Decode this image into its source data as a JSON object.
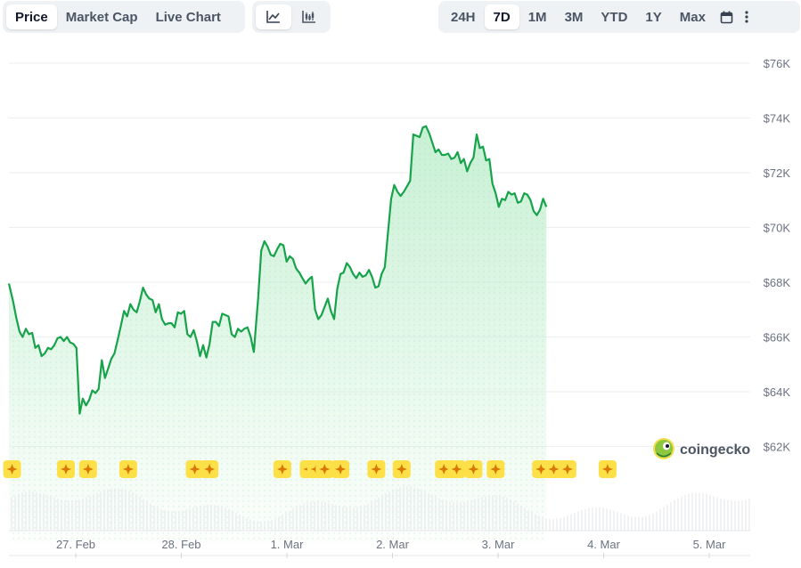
{
  "tabs": {
    "items": [
      {
        "label": "Price",
        "active": true
      },
      {
        "label": "Market Cap",
        "active": false
      },
      {
        "label": "Live Chart",
        "active": false
      }
    ]
  },
  "chart_type_toggle": {
    "items": [
      {
        "icon": "line-chart-icon",
        "active": true
      },
      {
        "icon": "candlestick-chart-icon",
        "active": false
      }
    ]
  },
  "ranges": {
    "items": [
      {
        "label": "24H",
        "active": false
      },
      {
        "label": "7D",
        "active": true
      },
      {
        "label": "1M",
        "active": false
      },
      {
        "label": "3M",
        "active": false
      },
      {
        "label": "YTD",
        "active": false
      },
      {
        "label": "1Y",
        "active": false
      },
      {
        "label": "Max",
        "active": false
      }
    ],
    "calendar_icon": "calendar-icon",
    "more_icon": "more-vertical-icon"
  },
  "watermark": {
    "text": "coingecko",
    "icon": "coingecko-gecko-icon"
  },
  "colors": {
    "line": "#16a34a",
    "area_top": "#c8f0d4",
    "event_badge": "#fde047",
    "event_star": "#d97706",
    "grid": "#eceef1",
    "axis_text": "#6b7280"
  },
  "chart_data": {
    "type": "area",
    "title": "",
    "xlabel": "",
    "ylabel": "",
    "y_ticks": [
      "$76K",
      "$74K",
      "$72K",
      "$70K",
      "$68K",
      "$66K",
      "$64K",
      "$62K"
    ],
    "y_tick_values": [
      76000,
      74000,
      72000,
      70000,
      68000,
      66000,
      64000,
      62000
    ],
    "ylim": [
      62000,
      76000
    ],
    "x_ticks": [
      "27. Feb",
      "28. Feb",
      "1. Mar",
      "2. Mar",
      "3. Mar",
      "4. Mar",
      "5. Mar"
    ],
    "xlim": [
      0,
      6.98
    ],
    "grid": true,
    "series": [
      {
        "values": [
          [
            0.0,
            67950
          ],
          [
            0.04,
            67300
          ],
          [
            0.07,
            66700
          ],
          [
            0.1,
            66200
          ],
          [
            0.13,
            66000
          ],
          [
            0.16,
            66300
          ],
          [
            0.19,
            66100
          ],
          [
            0.22,
            66150
          ],
          [
            0.25,
            65600
          ],
          [
            0.28,
            65700
          ],
          [
            0.31,
            65300
          ],
          [
            0.34,
            65400
          ],
          [
            0.37,
            65600
          ],
          [
            0.4,
            65550
          ],
          [
            0.43,
            65700
          ],
          [
            0.46,
            65950
          ],
          [
            0.49,
            66000
          ],
          [
            0.52,
            65850
          ],
          [
            0.55,
            66000
          ],
          [
            0.58,
            65800
          ],
          [
            0.61,
            65750
          ],
          [
            0.64,
            65600
          ],
          [
            0.67,
            63200
          ],
          [
            0.7,
            63750
          ],
          [
            0.73,
            63500
          ],
          [
            0.76,
            63700
          ],
          [
            0.79,
            64050
          ],
          [
            0.82,
            63950
          ],
          [
            0.85,
            64100
          ],
          [
            0.88,
            65150
          ],
          [
            0.91,
            64500
          ],
          [
            0.94,
            64850
          ],
          [
            0.97,
            65200
          ],
          [
            1.0,
            65400
          ],
          [
            1.03,
            65900
          ],
          [
            1.06,
            66400
          ],
          [
            1.09,
            66950
          ],
          [
            1.12,
            66750
          ],
          [
            1.15,
            67200
          ],
          [
            1.18,
            67000
          ],
          [
            1.21,
            66900
          ],
          [
            1.24,
            67300
          ],
          [
            1.27,
            67800
          ],
          [
            1.3,
            67550
          ],
          [
            1.33,
            67400
          ],
          [
            1.36,
            67350
          ],
          [
            1.39,
            66900
          ],
          [
            1.42,
            67200
          ],
          [
            1.45,
            66650
          ],
          [
            1.48,
            66450
          ],
          [
            1.51,
            66500
          ],
          [
            1.54,
            66500
          ],
          [
            1.57,
            66350
          ],
          [
            1.6,
            66900
          ],
          [
            1.63,
            66850
          ],
          [
            1.66,
            66950
          ],
          [
            1.69,
            66100
          ],
          [
            1.72,
            66000
          ],
          [
            1.75,
            66250
          ],
          [
            1.78,
            65850
          ],
          [
            1.81,
            65300
          ],
          [
            1.84,
            65700
          ],
          [
            1.87,
            65250
          ],
          [
            1.9,
            65750
          ],
          [
            1.93,
            66550
          ],
          [
            1.96,
            66550
          ],
          [
            1.99,
            66400
          ],
          [
            2.02,
            66850
          ],
          [
            2.05,
            66800
          ],
          [
            2.08,
            66750
          ],
          [
            2.11,
            66100
          ],
          [
            2.14,
            66000
          ],
          [
            2.17,
            66300
          ],
          [
            2.2,
            66200
          ],
          [
            2.23,
            66300
          ],
          [
            2.26,
            66350
          ],
          [
            2.29,
            66000
          ],
          [
            2.32,
            65450
          ],
          [
            2.36,
            67400
          ],
          [
            2.39,
            69150
          ],
          [
            2.42,
            69500
          ],
          [
            2.45,
            69300
          ],
          [
            2.48,
            69000
          ],
          [
            2.51,
            68950
          ],
          [
            2.54,
            69200
          ],
          [
            2.57,
            69400
          ],
          [
            2.6,
            69350
          ],
          [
            2.63,
            68750
          ],
          [
            2.66,
            68950
          ],
          [
            2.69,
            68850
          ],
          [
            2.72,
            68500
          ],
          [
            2.75,
            68350
          ],
          [
            2.78,
            68150
          ],
          [
            2.81,
            67950
          ],
          [
            2.84,
            68100
          ],
          [
            2.87,
            68200
          ],
          [
            2.9,
            67000
          ],
          [
            2.93,
            66650
          ],
          [
            2.96,
            66800
          ],
          [
            2.99,
            67100
          ],
          [
            3.02,
            67400
          ],
          [
            3.05,
            66950
          ],
          [
            3.08,
            66650
          ],
          [
            3.11,
            67750
          ],
          [
            3.14,
            68300
          ],
          [
            3.17,
            68350
          ],
          [
            3.2,
            68700
          ],
          [
            3.23,
            68550
          ],
          [
            3.26,
            68300
          ],
          [
            3.29,
            68150
          ],
          [
            3.32,
            68350
          ],
          [
            3.35,
            68200
          ],
          [
            3.38,
            68250
          ],
          [
            3.41,
            68450
          ],
          [
            3.44,
            68200
          ],
          [
            3.47,
            67800
          ],
          [
            3.5,
            67850
          ],
          [
            3.53,
            68300
          ],
          [
            3.56,
            68550
          ],
          [
            3.59,
            69800
          ],
          [
            3.62,
            71050
          ],
          [
            3.65,
            71550
          ],
          [
            3.68,
            71300
          ],
          [
            3.71,
            71150
          ],
          [
            3.74,
            71300
          ],
          [
            3.77,
            71500
          ],
          [
            3.8,
            71700
          ],
          [
            3.83,
            73400
          ],
          [
            3.86,
            73350
          ],
          [
            3.89,
            73300
          ],
          [
            3.92,
            73650
          ],
          [
            3.95,
            73700
          ],
          [
            3.98,
            73450
          ],
          [
            4.01,
            73100
          ],
          [
            4.04,
            72750
          ],
          [
            4.07,
            72850
          ],
          [
            4.1,
            72650
          ],
          [
            4.13,
            72650
          ],
          [
            4.16,
            72700
          ],
          [
            4.19,
            72500
          ],
          [
            4.22,
            72550
          ],
          [
            4.25,
            72750
          ],
          [
            4.28,
            72350
          ],
          [
            4.31,
            72500
          ],
          [
            4.34,
            72050
          ],
          [
            4.37,
            72350
          ],
          [
            4.4,
            72550
          ],
          [
            4.43,
            73400
          ],
          [
            4.46,
            72900
          ],
          [
            4.49,
            72950
          ],
          [
            4.52,
            72450
          ],
          [
            4.55,
            72500
          ],
          [
            4.58,
            71600
          ],
          [
            4.61,
            71250
          ],
          [
            4.64,
            70750
          ],
          [
            4.67,
            71050
          ],
          [
            4.7,
            71000
          ],
          [
            4.73,
            71300
          ],
          [
            4.76,
            71200
          ],
          [
            4.79,
            71250
          ],
          [
            4.82,
            70900
          ],
          [
            4.85,
            70950
          ],
          [
            4.88,
            71250
          ],
          [
            4.91,
            71200
          ],
          [
            4.94,
            71000
          ],
          [
            4.97,
            70600
          ],
          [
            5.0,
            70450
          ],
          [
            5.03,
            70650
          ],
          [
            5.06,
            71050
          ],
          [
            5.09,
            70750
          ]
        ]
      }
    ],
    "events_x": [
      0.03,
      0.54,
      0.75,
      1.13,
      1.76,
      1.9,
      2.59,
      2.84,
      2.91,
      2.99,
      3.14,
      3.48,
      3.72,
      4.12,
      4.24,
      4.4,
      4.61,
      5.04,
      5.16,
      5.29,
      5.67
    ]
  }
}
